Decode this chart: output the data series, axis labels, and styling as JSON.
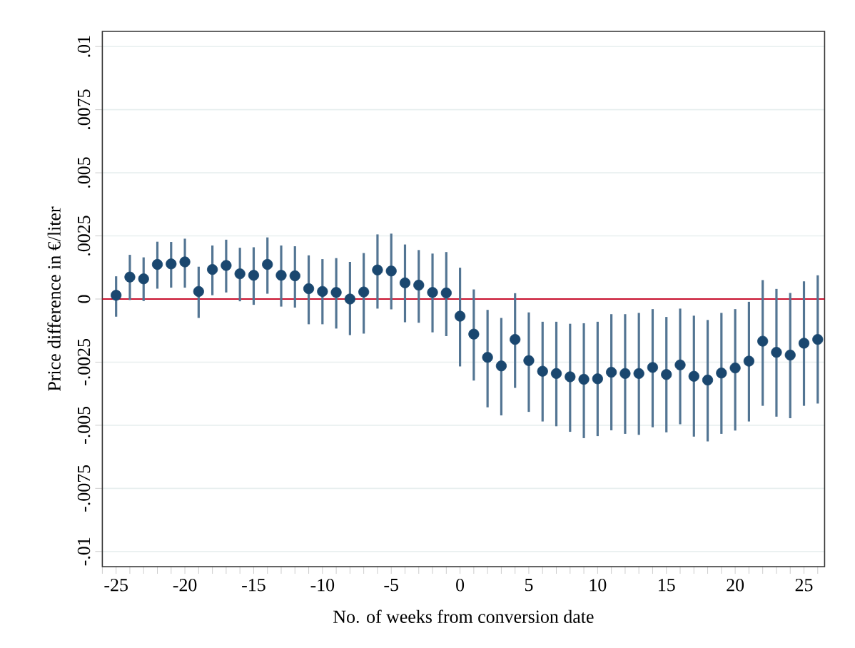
{
  "chart_data": {
    "type": "scatter",
    "xlabel": "No. of weeks from conversion date",
    "ylabel": "Price difference in €/liter",
    "x": [
      -25,
      -24,
      -23,
      -22,
      -21,
      -20,
      -19,
      -18,
      -17,
      -16,
      -15,
      -14,
      -13,
      -12,
      -11,
      -10,
      -9,
      -8,
      -7,
      -6,
      -5,
      -4,
      -3,
      -2,
      -1,
      0,
      1,
      2,
      3,
      4,
      5,
      6,
      7,
      8,
      9,
      10,
      11,
      12,
      13,
      14,
      15,
      16,
      17,
      18,
      19,
      20,
      21,
      22,
      23,
      24,
      25,
      26
    ],
    "series": [
      {
        "color": "#1a476f",
        "values": [
          0.00015,
          0.00087,
          0.0008,
          0.00137,
          0.00139,
          0.00147,
          0.0003,
          0.00117,
          0.00133,
          0.001,
          0.00094,
          0.00137,
          0.00094,
          0.00092,
          0.00041,
          0.0003,
          0.00026,
          0,
          0.00028,
          0.00115,
          0.00111,
          0.00064,
          0.00055,
          0.00026,
          0.00024,
          -0.00068,
          -0.00139,
          -0.00231,
          -0.00265,
          -0.0016,
          -0.00244,
          -0.00286,
          -0.00295,
          -0.00308,
          -0.00318,
          -0.00316,
          -0.0029,
          -0.00295,
          -0.00295,
          -0.00271,
          -0.00299,
          -0.00261,
          -0.00306,
          -0.00321,
          -0.00293,
          -0.00273,
          -0.00246,
          -0.00167,
          -0.00211,
          -0.00222,
          -0.00175,
          -0.0016
        ],
        "errors": [
          [
            -0.0007,
            0.0009
          ],
          [
            -4e-05,
            0.00175
          ],
          [
            -8e-05,
            0.00165
          ],
          [
            0.00041,
            0.00227
          ],
          [
            0.00045,
            0.00226
          ],
          [
            0.00045,
            0.00239
          ],
          [
            -0.00075,
            0.00128
          ],
          [
            0.00015,
            0.00212
          ],
          [
            0.00026,
            0.00235
          ],
          [
            -9e-05,
            0.00203
          ],
          [
            -0.00023,
            0.00205
          ],
          [
            0.00021,
            0.00244
          ],
          [
            -0.0003,
            0.00212
          ],
          [
            -0.00034,
            0.00209
          ],
          [
            -0.001,
            0.00173
          ],
          [
            -0.001,
            0.00158
          ],
          [
            -0.00117,
            0.00162
          ],
          [
            -0.00143,
            0.00147
          ],
          [
            -0.00137,
            0.00182
          ],
          [
            -0.00038,
            0.00256
          ],
          [
            -0.00041,
            0.00259
          ],
          [
            -0.00092,
            0.00216
          ],
          [
            -0.00094,
            0.00194
          ],
          [
            -0.00132,
            0.0018
          ],
          [
            -0.00147,
            0.00186
          ],
          [
            -0.00267,
            0.00124
          ],
          [
            -0.00323,
            0.00038
          ],
          [
            -0.00429,
            -0.00043
          ],
          [
            -0.00461,
            -0.00075
          ],
          [
            -0.00352,
            0.00023
          ],
          [
            -0.00447,
            -0.00053
          ],
          [
            -0.00485,
            -0.0009
          ],
          [
            -0.00504,
            -0.0009
          ],
          [
            -0.00526,
            -0.00098
          ],
          [
            -0.00551,
            -0.00096
          ],
          [
            -0.00543,
            -0.0009
          ],
          [
            -0.0052,
            -0.0006
          ],
          [
            -0.00534,
            -0.0006
          ],
          [
            -0.00538,
            -0.00055
          ],
          [
            -0.00508,
            -0.0004
          ],
          [
            -0.00528,
            -0.00071
          ],
          [
            -0.00496,
            -0.00038
          ],
          [
            -0.00545,
            -0.00066
          ],
          [
            -0.00564,
            -0.00083
          ],
          [
            -0.00534,
            -0.00055
          ],
          [
            -0.00521,
            -0.0004
          ],
          [
            -0.00485,
            -0.00011
          ],
          [
            -0.00423,
            0.00075
          ],
          [
            -0.00466,
            0.0004
          ],
          [
            -0.00472,
            0.00024
          ],
          [
            -0.00423,
            0.0007
          ],
          [
            -0.00414,
            0.00094
          ]
        ]
      }
    ],
    "xlim": [
      -26,
      26.5
    ],
    "xticks": [
      {
        "value": -26,
        "label": null
      },
      -25,
      {
        "value": -24,
        "label": null
      },
      {
        "value": -23,
        "label": null
      },
      {
        "value": -22,
        "label": null
      },
      {
        "value": -21,
        "label": null
      },
      -20,
      {
        "value": -19,
        "label": null
      },
      {
        "value": -18,
        "label": null
      },
      {
        "value": -17,
        "label": null
      },
      {
        "value": -16,
        "label": null
      },
      -15,
      {
        "value": -14,
        "label": null
      },
      {
        "value": -13,
        "label": null
      },
      {
        "value": -12,
        "label": null
      },
      {
        "value": -11,
        "label": null
      },
      -10,
      {
        "value": -9,
        "label": null
      },
      {
        "value": -8,
        "label": null
      },
      {
        "value": -7,
        "label": null
      },
      {
        "value": -6,
        "label": null
      },
      -5,
      {
        "value": -4,
        "label": null
      },
      {
        "value": -3,
        "label": null
      },
      {
        "value": -2,
        "label": null
      },
      {
        "value": -1,
        "label": null
      },
      0,
      {
        "value": 1,
        "label": null
      },
      {
        "value": 2,
        "label": null
      },
      {
        "value": 3,
        "label": null
      },
      {
        "value": 4,
        "label": null
      },
      5,
      {
        "value": 6,
        "label": null
      },
      {
        "value": 7,
        "label": null
      },
      {
        "value": 8,
        "label": null
      },
      {
        "value": 9,
        "label": null
      },
      10,
      {
        "value": 11,
        "label": null
      },
      {
        "value": 12,
        "label": null
      },
      {
        "value": 13,
        "label": null
      },
      {
        "value": 14,
        "label": null
      },
      15,
      {
        "value": 16,
        "label": null
      },
      {
        "value": 17,
        "label": null
      },
      {
        "value": 18,
        "label": null
      },
      {
        "value": 19,
        "label": null
      },
      20,
      {
        "value": 21,
        "label": null
      },
      {
        "value": 22,
        "label": null
      },
      {
        "value": 23,
        "label": null
      },
      {
        "value": 24,
        "label": null
      },
      25,
      {
        "value": 26,
        "label": null
      }
    ],
    "ylim": [
      -0.0106,
      0.0106
    ],
    "yticks": [
      {
        "value": -0.01,
        "label": "-.01"
      },
      {
        "value": -0.0075,
        "label": "-.0075"
      },
      {
        "value": -0.005,
        "label": "-.005"
      },
      {
        "value": -0.0025,
        "label": "-.0025"
      },
      0,
      {
        "value": 0.0025,
        "label": ".0025"
      },
      {
        "value": 0.005,
        "label": ".005"
      },
      {
        "value": 0.0075,
        "label": ".0075"
      },
      {
        "value": 0.01,
        "label": ".01"
      }
    ],
    "ref_lines": [
      {
        "axis": "y",
        "value": 0,
        "color": "#c8102e"
      }
    ],
    "grid": "y",
    "marker": "circle"
  }
}
